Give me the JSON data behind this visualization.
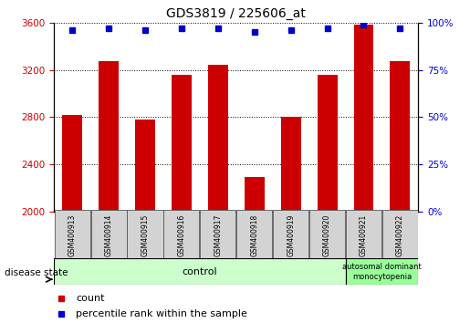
{
  "title": "GDS3819 / 225606_at",
  "samples": [
    "GSM400913",
    "GSM400914",
    "GSM400915",
    "GSM400916",
    "GSM400917",
    "GSM400918",
    "GSM400919",
    "GSM400920",
    "GSM400921",
    "GSM400922"
  ],
  "counts": [
    2820,
    3270,
    2780,
    3160,
    3240,
    2290,
    2800,
    3160,
    3580,
    3270
  ],
  "percentiles": [
    96,
    97,
    96,
    97,
    97,
    95,
    96,
    97,
    99,
    97
  ],
  "ylim_left": [
    2000,
    3600
  ],
  "ylim_right": [
    0,
    100
  ],
  "yticks_left": [
    2000,
    2400,
    2800,
    3200,
    3600
  ],
  "yticks_right": [
    0,
    25,
    50,
    75,
    100
  ],
  "bar_color": "#cc0000",
  "dot_color": "#0000cc",
  "bar_width": 0.55,
  "grid_color": "#000000",
  "left_tick_color": "#cc0000",
  "right_tick_color": "#0000cc",
  "control_color": "#ccffcc",
  "disease_color": "#99ff99",
  "label_box_color": "#d3d3d3",
  "n_control": 8,
  "disease_label": "autosomal dominant\nmonocytopenia",
  "control_label": "control",
  "disease_state_label": "disease state",
  "legend_count": "count",
  "legend_percentile": "percentile rank within the sample"
}
